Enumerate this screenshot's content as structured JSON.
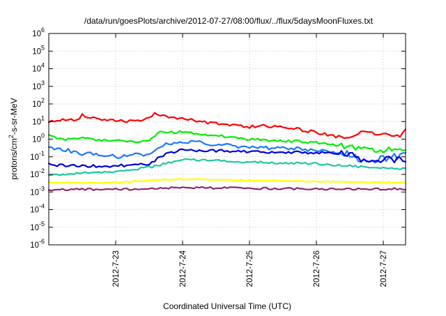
{
  "chart_data": {
    "type": "line",
    "title": "/data/run/goesPlots/archive/2012-07-27/08:00/flux/../flux/5daysMoonFluxes.txt",
    "xlabel": "Coordinated Universal Time (UTC)",
    "ylabel": {
      "prefix": "protons/cm",
      "superscript": "2",
      "suffix": "-s-sr-MeV"
    },
    "y_scale": "log",
    "ylim_exponent": [
      -6,
      6
    ],
    "y_ticks": [
      {
        "base": "10",
        "exp": "-6"
      },
      {
        "base": "10",
        "exp": "-5"
      },
      {
        "base": "10",
        "exp": "-4"
      },
      {
        "base": "10",
        "exp": "-3"
      },
      {
        "base": "10",
        "exp": "-2"
      },
      {
        "base": "10",
        "exp": "-1"
      },
      {
        "base": "10",
        "exp": "0"
      },
      {
        "base": "10",
        "exp": "1"
      },
      {
        "base": "10",
        "exp": "2"
      },
      {
        "base": "10",
        "exp": "3"
      },
      {
        "base": "10",
        "exp": "4"
      },
      {
        "base": "10",
        "exp": "5"
      },
      {
        "base": "10",
        "exp": "6"
      }
    ],
    "xlim": [
      "2012-07-22 00:00",
      "2012-07-27 08:00"
    ],
    "x_ticks": [
      "2012-7-23",
      "2012-7-24",
      "2012-7-25",
      "2012-7-26",
      "2012-7-27"
    ],
    "grid": true,
    "legend": "none",
    "series": [
      {
        "color": "#ff0000",
        "x": [
          "2012-07-22 00:00",
          "2012-07-22 06:00",
          "2012-07-22 10:00",
          "2012-07-22 12:00",
          "2012-07-22 14:00",
          "2012-07-22 18:00",
          "2012-07-23 00:00",
          "2012-07-23 06:00",
          "2012-07-23 12:00",
          "2012-07-23 14:00",
          "2012-07-23 16:00",
          "2012-07-23 18:00",
          "2012-07-24 00:00",
          "2012-07-24 06:00",
          "2012-07-24 12:00",
          "2012-07-24 18:00",
          "2012-07-25 00:00",
          "2012-07-25 06:00",
          "2012-07-25 12:00",
          "2012-07-25 18:00",
          "2012-07-26 00:00",
          "2012-07-26 06:00",
          "2012-07-26 12:00",
          "2012-07-26 14:00",
          "2012-07-26 16:00",
          "2012-07-26 18:00",
          "2012-07-27 00:00",
          "2012-07-27 06:00",
          "2012-07-27 08:00"
        ],
        "y": [
          9,
          14,
          12,
          25,
          18,
          15,
          12,
          10,
          15,
          28,
          22,
          20,
          15,
          10,
          8,
          6,
          5,
          6,
          4.5,
          3.5,
          2.5,
          1.5,
          1.3,
          1.6,
          2.5,
          2.2,
          2,
          1.5,
          3.5
        ]
      },
      {
        "color": "#00ee00",
        "x": [
          "2012-07-22 00:00",
          "2012-07-22 06:00",
          "2012-07-22 12:00",
          "2012-07-22 18:00",
          "2012-07-23 00:00",
          "2012-07-23 06:00",
          "2012-07-23 12:00",
          "2012-07-23 16:00",
          "2012-07-24 00:00",
          "2012-07-24 12:00",
          "2012-07-25 00:00",
          "2012-07-25 12:00",
          "2012-07-26 00:00",
          "2012-07-26 06:00",
          "2012-07-26 12:00",
          "2012-07-26 18:00",
          "2012-07-27 00:00",
          "2012-07-27 08:00"
        ],
        "y": [
          1.5,
          1.0,
          1.3,
          0.9,
          0.9,
          0.7,
          0.8,
          2.5,
          2.5,
          1.6,
          1.0,
          0.8,
          0.65,
          0.5,
          0.35,
          0.25,
          0.22,
          0.3
        ]
      },
      {
        "color": "#1e78ff",
        "x": [
          "2012-07-22 00:00",
          "2012-07-22 06:00",
          "2012-07-22 12:00",
          "2012-07-22 18:00",
          "2012-07-23 00:00",
          "2012-07-23 06:00",
          "2012-07-23 12:00",
          "2012-07-23 16:00",
          "2012-07-24 00:00",
          "2012-07-24 12:00",
          "2012-07-25 00:00",
          "2012-07-25 12:00",
          "2012-07-26 00:00",
          "2012-07-26 06:00",
          "2012-07-26 12:00",
          "2012-07-26 18:00",
          "2012-07-27 00:00",
          "2012-07-27 08:00"
        ],
        "y": [
          0.35,
          0.25,
          0.15,
          0.15,
          0.1,
          0.12,
          0.15,
          0.4,
          0.8,
          0.5,
          0.35,
          0.3,
          0.25,
          0.2,
          0.15,
          0.04,
          0.08,
          0.12
        ]
      },
      {
        "color": "#0000dd",
        "x": [
          "2012-07-22 00:00",
          "2012-07-22 12:00",
          "2012-07-23 00:00",
          "2012-07-23 12:00",
          "2012-07-23 18:00",
          "2012-07-24 00:00",
          "2012-07-24 12:00",
          "2012-07-25 00:00",
          "2012-07-25 12:00",
          "2012-07-26 00:00",
          "2012-07-26 12:00",
          "2012-07-26 18:00",
          "2012-07-27 00:00",
          "2012-07-27 08:00"
        ],
        "y": [
          0.035,
          0.03,
          0.03,
          0.04,
          0.15,
          0.25,
          0.22,
          0.2,
          0.18,
          0.17,
          0.16,
          0.05,
          0.07,
          0.06
        ]
      },
      {
        "color": "#20c8a0",
        "x": [
          "2012-07-22 00:00",
          "2012-07-22 12:00",
          "2012-07-23 00:00",
          "2012-07-23 12:00",
          "2012-07-24 00:00",
          "2012-07-24 12:00",
          "2012-07-25 00:00",
          "2012-07-25 12:00",
          "2012-07-26 00:00",
          "2012-07-26 12:00",
          "2012-07-27 00:00",
          "2012-07-27 08:00"
        ],
        "y": [
          0.009,
          0.012,
          0.014,
          0.025,
          0.07,
          0.06,
          0.05,
          0.045,
          0.04,
          0.03,
          0.022,
          0.02
        ]
      },
      {
        "color": "#ffff00",
        "x": [
          "2012-07-22 00:00",
          "2012-07-22 12:00",
          "2012-07-23 00:00",
          "2012-07-23 12:00",
          "2012-07-24 00:00",
          "2012-07-25 00:00",
          "2012-07-26 00:00",
          "2012-07-27 00:00",
          "2012-07-27 08:00"
        ],
        "y": [
          0.0035,
          0.0034,
          0.0035,
          0.0045,
          0.0055,
          0.0045,
          0.004,
          0.0035,
          0.0035
        ]
      },
      {
        "color": "#8b2b6b",
        "x": [
          "2012-07-22 00:00",
          "2012-07-22 12:00",
          "2012-07-23 00:00",
          "2012-07-23 12:00",
          "2012-07-24 00:00",
          "2012-07-25 00:00",
          "2012-07-26 00:00",
          "2012-07-27 00:00",
          "2012-07-27 08:00"
        ],
        "y": [
          0.0013,
          0.0014,
          0.0014,
          0.0015,
          0.0018,
          0.0016,
          0.0015,
          0.0015,
          0.0015
        ]
      }
    ]
  }
}
